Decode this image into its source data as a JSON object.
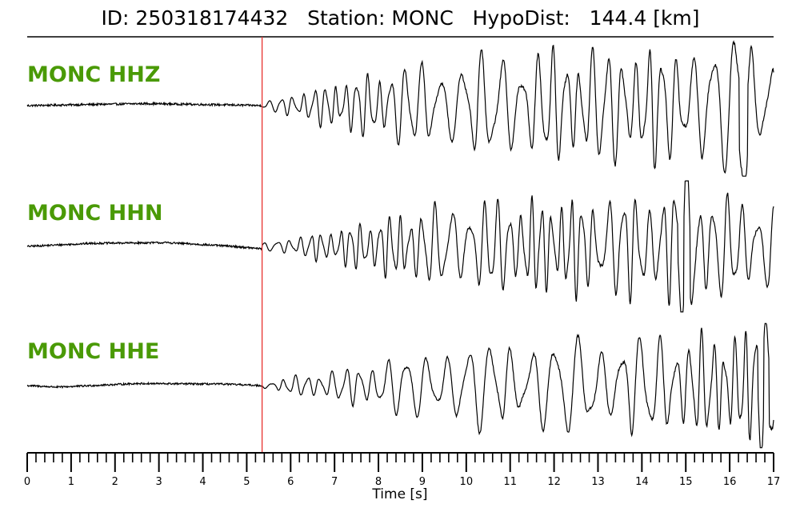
{
  "header": {
    "title": "ID: 250318174432   Station: MONC   HypoDist:   144.4 [km]"
  },
  "chart_data": {
    "type": "line",
    "xlabel": "Time [s]",
    "xlim": [
      0,
      17
    ],
    "x_ticks": [
      "0",
      "1",
      "2",
      "3",
      "4",
      "5",
      "6",
      "7",
      "8",
      "9",
      "10",
      "11",
      "12",
      "13",
      "14",
      "15",
      "16",
      "17"
    ],
    "minor_tick_step": 0.2,
    "pick_time": 5.35,
    "pick_color": "#e8312f",
    "label_color": "#4a9a06",
    "trace_color": "#000000",
    "traces": [
      {
        "name": "MONC HHZ",
        "onset": 5.35,
        "envelope": [
          [
            0,
            0.03
          ],
          [
            5.35,
            0.04
          ],
          [
            6.0,
            0.18
          ],
          [
            7.0,
            0.38
          ],
          [
            8.0,
            0.55
          ],
          [
            9.0,
            0.68
          ],
          [
            10.0,
            0.78
          ],
          [
            11.0,
            0.88
          ],
          [
            13.0,
            0.92
          ],
          [
            15.0,
            0.95
          ],
          [
            16.3,
            1.0
          ],
          [
            17.0,
            0.85
          ]
        ],
        "pre_event_shape": [
          [
            0,
            0.0
          ],
          [
            2.7,
            0.06
          ],
          [
            4.6,
            0.02
          ],
          [
            5.35,
            0.0
          ]
        ],
        "peak_time": 16.3,
        "peak_sign": 1
      },
      {
        "name": "MONC HHN",
        "onset": 5.35,
        "envelope": [
          [
            0,
            0.04
          ],
          [
            5.35,
            0.05
          ],
          [
            6.0,
            0.15
          ],
          [
            7.0,
            0.3
          ],
          [
            8.0,
            0.5
          ],
          [
            9.0,
            0.65
          ],
          [
            10.0,
            0.78
          ],
          [
            12.0,
            0.82
          ],
          [
            14.0,
            0.92
          ],
          [
            15.0,
            1.0
          ],
          [
            16.0,
            0.85
          ],
          [
            17.0,
            0.8
          ]
        ],
        "pre_event_shape": [
          [
            0,
            0.0
          ],
          [
            1.5,
            0.1
          ],
          [
            3.2,
            0.12
          ],
          [
            4.7,
            0.0
          ],
          [
            5.35,
            -0.08
          ]
        ],
        "peak_time": 15.0,
        "peak_sign": 1
      },
      {
        "name": "MONC HHE",
        "onset": 5.35,
        "envelope": [
          [
            0,
            0.04
          ],
          [
            5.35,
            0.05
          ],
          [
            6.0,
            0.16
          ],
          [
            7.0,
            0.28
          ],
          [
            8.0,
            0.45
          ],
          [
            9.0,
            0.6
          ],
          [
            10.0,
            0.75
          ],
          [
            11.0,
            0.82
          ],
          [
            13.0,
            0.88
          ],
          [
            15.0,
            0.92
          ],
          [
            16.8,
            1.0
          ],
          [
            17.0,
            0.9
          ]
        ],
        "pre_event_shape": [
          [
            0,
            0.0
          ],
          [
            0.7,
            -0.05
          ],
          [
            2.5,
            0.07
          ],
          [
            4.5,
            0.05
          ],
          [
            5.35,
            0.0
          ]
        ],
        "peak_time": 16.8,
        "peak_sign": 1
      }
    ]
  }
}
